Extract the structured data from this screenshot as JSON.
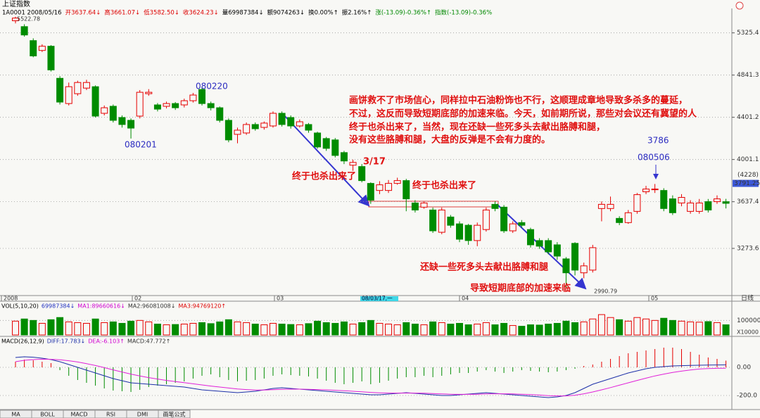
{
  "header": {
    "title": "上证指数",
    "info": [
      "1A0001 2008/05/16",
      "开3637.64↓",
      "高3661.07↓",
      "低3582.50↓",
      "收3624.23↓",
      "量69987384↓",
      "额9074263↓",
      "换0.00%↑",
      "振2.16%↑",
      "涨(-13.09)-0.36%↑",
      "指数(-13.09)-0.36%"
    ]
  },
  "tabs": [
    "MA",
    "BOLL",
    "MACD",
    "RSI",
    "DMI",
    "画笔公式"
  ],
  "period": "日线",
  "chart_data": [
    {
      "type": "candlestick",
      "log_scale": true,
      "grid": true,
      "up_color": "#e60000",
      "down_color": "#008c00",
      "ylim": [
        2943,
        5645
      ],
      "yticks": [
        5325.4,
        4841.3,
        4401.2,
        4001.1,
        3637.4,
        3273.6
      ],
      "xlabels": [
        "2008",
        "02",
        "03",
        "04",
        "05"
      ],
      "cursor_label": "08/03/17,一",
      "price_marker": {
        "label": "(4228)",
        "value": 3791.25
      },
      "annotations": [
        "5522.78",
        "080201",
        "080220",
        "3/17",
        "终于也杀出来了",
        "终于也杀出来了",
        "还缺一些死多头去献出胳膊和腿",
        "导致短期底部的加速来临",
        "3786",
        "080506",
        "2990.79",
        "画饼救不了市场信心，同样拉中石油粉饰也不行，这顺理成章地导致多杀多的蔓延，",
        "不过，这反而导致短期底部的加速来临。今天，如前期所说，那些对会议还有冀望的人",
        "终于也杀出来了，当然，现在还缺一些死多头去献出胳膊和腿，",
        "没有这些胳膊和腿，大盘的反弹是不会有力度的。"
      ],
      "open": [
        5473,
        5401,
        5233,
        5118,
        5167,
        4806,
        4540,
        4642,
        4701,
        4716,
        4441,
        4512,
        4399,
        4371,
        4413,
        4642,
        4526,
        4512,
        4540,
        4526,
        4569,
        4686,
        4540,
        4497,
        4371,
        4235,
        4248,
        4330,
        4302,
        4316,
        4441,
        4399,
        4316,
        4330,
        4248,
        4195,
        4182,
        4064,
        3950,
        3938,
        3791,
        3731,
        3731,
        3791,
        3815,
        3627,
        3593,
        3570,
        3395,
        3514,
        3460,
        3449,
        3332,
        3416,
        3616,
        3593,
        3406,
        3470,
        3416,
        3332,
        3332,
        3300,
        3197,
        3311,
        3098,
        3117,
        3582,
        3582,
        3503,
        3470,
        3559,
        3720,
        3743,
        3731,
        3661,
        3627,
        3559,
        3559,
        3638,
        3638,
        3637.64
      ],
      "high": [
        5522.78,
        5430,
        5260,
        5190,
        5180,
        4830,
        4760,
        4780,
        4790,
        4730,
        4520,
        4530,
        4420,
        4390,
        4680,
        4690,
        4545,
        4560,
        4555,
        4590,
        4650,
        4720,
        4560,
        4510,
        4390,
        4300,
        4350,
        4350,
        4360,
        4460,
        4460,
        4420,
        4380,
        4345,
        4260,
        4210,
        4200,
        4080,
        4000,
        3960,
        3800,
        3810,
        3820,
        3840,
        3830,
        3650,
        3640,
        3590,
        3590,
        3530,
        3480,
        3460,
        3470,
        3590,
        3640,
        3610,
        3480,
        3490,
        3430,
        3350,
        3350,
        3320,
        3210,
        3320,
        3170,
        3300,
        3640,
        3680,
        3520,
        3570,
        3710,
        3770,
        3786,
        3750,
        3690,
        3700,
        3650,
        3660,
        3660,
        3690,
        3661.07
      ],
      "low": [
        5440,
        5280,
        5040,
        5100,
        4880,
        4530,
        4520,
        4620,
        4680,
        4400,
        4420,
        4350,
        4300,
        4195,
        4390,
        4620,
        4460,
        4490,
        4475,
        4500,
        4550,
        4520,
        4470,
        4350,
        4160,
        4150,
        4230,
        4270,
        4280,
        4300,
        4310,
        4290,
        4300,
        4250,
        4100,
        4080,
        4020,
        3960,
        3900,
        3800,
        3620,
        3700,
        3710,
        3780,
        3560,
        3550,
        3580,
        3390,
        3380,
        3430,
        3320,
        3300,
        3290,
        3400,
        3560,
        3390,
        3390,
        3430,
        3280,
        3270,
        3230,
        3190,
        2990.79,
        3080,
        3060,
        3100,
        3480,
        3560,
        3450,
        3460,
        3540,
        3700,
        3710,
        3560,
        3530,
        3600,
        3540,
        3540,
        3550,
        3620,
        3582.5
      ],
      "close": [
        5506,
        5300,
        5055,
        5167,
        4898,
        4555,
        4716,
        4761,
        4761,
        4413,
        4497,
        4371,
        4330,
        4295,
        4657,
        4657,
        4483,
        4540,
        4497,
        4569,
        4628,
        4540,
        4497,
        4371,
        4182,
        4275,
        4330,
        4289,
        4344,
        4441,
        4330,
        4316,
        4357,
        4275,
        4116,
        4103,
        4038,
        3988,
        3975,
        3815,
        3650,
        3779,
        3791,
        3815,
        3661,
        3570,
        3627,
        3406,
        3570,
        3449,
        3342,
        3332,
        3449,
        3570,
        3582,
        3406,
        3460,
        3449,
        3300,
        3290,
        3248,
        3217,
        3098,
        3117,
        3147,
        3279,
        3616,
        3616,
        3470,
        3548,
        3696,
        3743,
        3743,
        3582,
        3548,
        3673,
        3627,
        3627,
        3570,
        3661,
        3624.23
      ]
    },
    {
      "type": "bar",
      "ylim": [
        0,
        150000
      ],
      "yticks": [
        100000
      ],
      "unit": "X10000",
      "legend": [
        "VOL(5,10,20)",
        "69987384↓",
        "MA1:89660616↓",
        "MA2:96081008↓",
        "MA3:94769120↑"
      ],
      "values": [
        95000,
        110000,
        100000,
        80000,
        105000,
        120000,
        90000,
        85000,
        80000,
        110000,
        85000,
        90000,
        80000,
        95000,
        100000,
        90000,
        75000,
        70000,
        72000,
        75000,
        80000,
        85000,
        78000,
        90000,
        105000,
        90000,
        85000,
        75000,
        70000,
        80000,
        75000,
        72000,
        70000,
        78000,
        95000,
        85000,
        80000,
        90000,
        75000,
        85000,
        100000,
        80000,
        75000,
        70000,
        85000,
        75000,
        70000,
        90000,
        85000,
        75000,
        80000,
        70000,
        75000,
        85000,
        70000,
        80000,
        65000,
        60000,
        70000,
        68000,
        75000,
        80000,
        95000,
        85000,
        90000,
        110000,
        140000,
        120000,
        105000,
        95000,
        120000,
        110000,
        100000,
        115000,
        100000,
        95000,
        90000,
        88000,
        92000,
        85000,
        70000
      ]
    },
    {
      "type": "macd",
      "ylim": [
        -290,
        160
      ],
      "yticks": [
        {
          "value": 0,
          "label": "0.00"
        },
        {
          "value": -200,
          "label": "-200.0"
        }
      ],
      "legend": [
        "MACD(26,12,9)",
        "DIFF:17.783↓",
        "DEA:-6.103↑",
        "MACD:47.772↑"
      ],
      "up_color": "#e60000",
      "down_color": "#008c00",
      "values": [
        40,
        55,
        50,
        40,
        30,
        -20,
        -60,
        -90,
        -110,
        -130,
        -150,
        -165,
        -170,
        -175,
        -160,
        -140,
        -130,
        -120,
        -110,
        -100,
        -80,
        -60,
        -50,
        -70,
        -90,
        -100,
        -95,
        -90,
        -80,
        -60,
        -50,
        -55,
        -60,
        -65,
        -80,
        -95,
        -110,
        -120,
        -110,
        -100,
        -120,
        -110,
        -95,
        -80,
        -70,
        -70,
        -60,
        -70,
        -60,
        -50,
        -40,
        -40,
        -30,
        -20,
        -30,
        -40,
        -30,
        -20,
        -25,
        -30,
        -35,
        -30,
        -20,
        -10,
        10,
        20,
        40,
        60,
        80,
        100,
        110,
        120,
        130,
        140,
        140,
        130,
        110,
        90,
        70,
        60,
        47.772
      ],
      "series": [
        {
          "color": "#1c2fa8",
          "values": [
            70,
            75,
            72,
            65,
            55,
            40,
            20,
            0,
            -20,
            -40,
            -60,
            -80,
            -95,
            -110,
            -115,
            -120,
            -125,
            -130,
            -135,
            -140,
            -150,
            -160,
            -165,
            -170,
            -175,
            -180,
            -175,
            -170,
            -160,
            -150,
            -145,
            -150,
            -155,
            -160,
            -165,
            -170,
            -175,
            -180,
            -185,
            -190,
            -195,
            -195,
            -190,
            -185,
            -180,
            -185,
            -190,
            -195,
            -200,
            -200,
            -195,
            -190,
            -185,
            -180,
            -185,
            -190,
            -195,
            -200,
            -205,
            -210,
            -215,
            -210,
            -200,
            -180,
            -150,
            -120,
            -100,
            -80,
            -60,
            -40,
            -25,
            -10,
            0,
            5,
            10,
            12,
            14,
            15,
            16,
            17,
            17.783
          ]
        },
        {
          "color": "#e020d8",
          "values": [
            40,
            50,
            55,
            58,
            57,
            54,
            47,
            38,
            26,
            13,
            -2,
            -18,
            -33,
            -48,
            -61,
            -73,
            -83,
            -93,
            -101,
            -109,
            -117,
            -125,
            -133,
            -140,
            -147,
            -154,
            -158,
            -161,
            -161,
            -159,
            -156,
            -155,
            -155,
            -156,
            -158,
            -160,
            -163,
            -166,
            -170,
            -174,
            -178,
            -181,
            -183,
            -183,
            -183,
            -183,
            -184,
            -186,
            -189,
            -191,
            -192,
            -192,
            -191,
            -189,
            -188,
            -188,
            -189,
            -191,
            -194,
            -197,
            -201,
            -203,
            -203,
            -198,
            -188,
            -175,
            -160,
            -144,
            -127,
            -110,
            -93,
            -77,
            -61,
            -48,
            -36,
            -27,
            -19,
            -12,
            -9,
            -7,
            -6.103
          ]
        }
      ]
    }
  ]
}
